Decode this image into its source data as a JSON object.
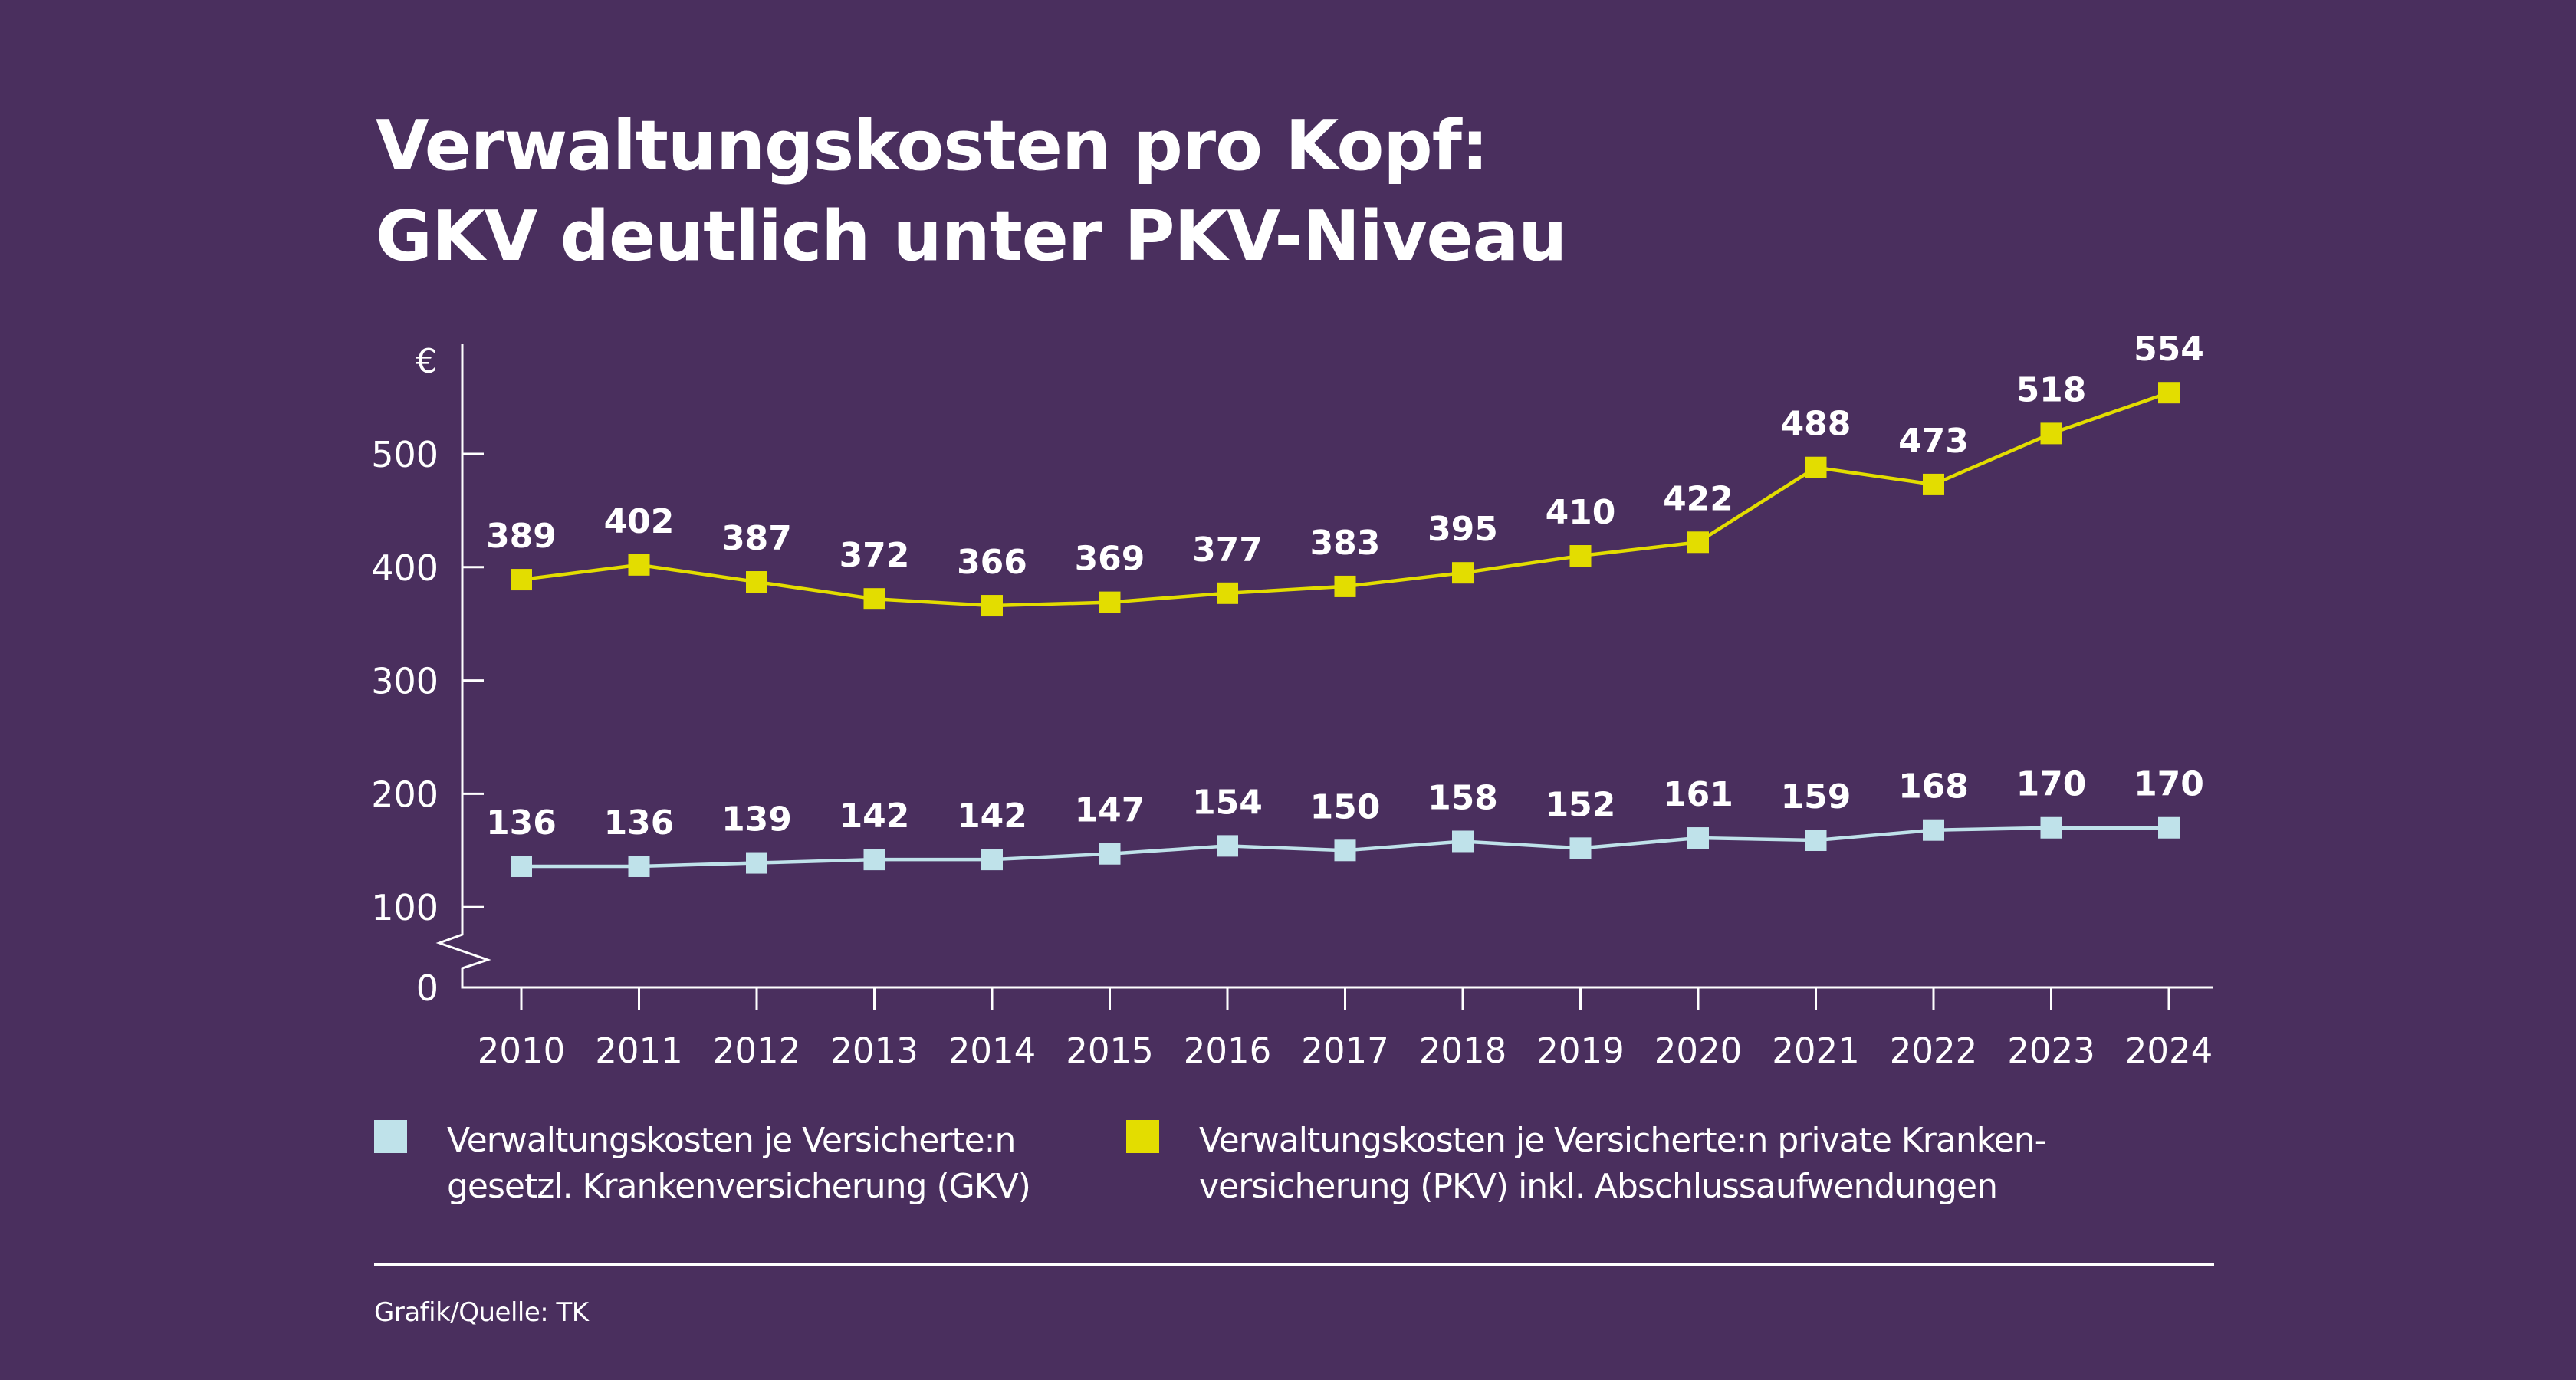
{
  "colors": {
    "background": "#4a2f5e",
    "axis": "#ffffff",
    "gkv": "#bfe2ea",
    "pkv": "#e3dd00",
    "text": "#ffffff"
  },
  "title": {
    "line1": "Verwaltungskosten pro Kopf:",
    "line2": "GKV deutlich unter PKV-Niveau"
  },
  "legend": [
    {
      "series": "GKV",
      "line1": "Verwaltungskosten je Versicherte:n",
      "line2": "gesetzl. Krankenversicherung (GKV)"
    },
    {
      "series": "PKV",
      "line1": "Verwaltungskosten je Versicherte:n private Kranken-",
      "line2": "versicherung (PKV) inkl. Abschlussaufwendungen"
    }
  ],
  "source": "Grafik/Quelle: TK",
  "chart_data": {
    "type": "line",
    "title": "Verwaltungskosten pro Kopf: GKV deutlich unter PKV-Niveau",
    "xlabel": "",
    "ylabel": "€",
    "x": [
      "2010",
      "2011",
      "2012",
      "2013",
      "2014",
      "2015",
      "2016",
      "2017",
      "2018",
      "2019",
      "2020",
      "2021",
      "2022",
      "2023",
      "2024"
    ],
    "yticks": [
      0,
      100,
      200,
      300,
      400,
      500
    ],
    "ylim": [
      0,
      580
    ],
    "axis_break": "between 0 and 100",
    "grid": false,
    "legend_position": "bottom",
    "series": [
      {
        "name": "Verwaltungskosten je Versicherte:n private Krankenversicherung (PKV) inkl. Abschlussaufwendungen",
        "key": "pkv",
        "values": [
          389,
          402,
          387,
          372,
          366,
          369,
          377,
          383,
          395,
          410,
          422,
          488,
          473,
          518,
          554
        ],
        "labels": [
          "389",
          "402",
          "387",
          "372",
          "366",
          "369",
          "377",
          "383",
          "395",
          "410",
          "422",
          "488",
          "473",
          "518",
          "554"
        ]
      },
      {
        "name": "Verwaltungskosten je Versicherte:n gesetzl. Krankenversicherung (GKV)",
        "key": "gkv",
        "values": [
          136,
          136,
          139,
          142,
          142,
          147,
          154,
          150,
          158,
          152,
          161,
          159,
          168,
          170,
          170
        ],
        "labels": [
          "136",
          "136",
          "139",
          "142",
          "142",
          "147",
          "154",
          "150",
          "158",
          "152",
          "161",
          "159",
          "168",
          "170",
          "170"
        ]
      }
    ]
  }
}
